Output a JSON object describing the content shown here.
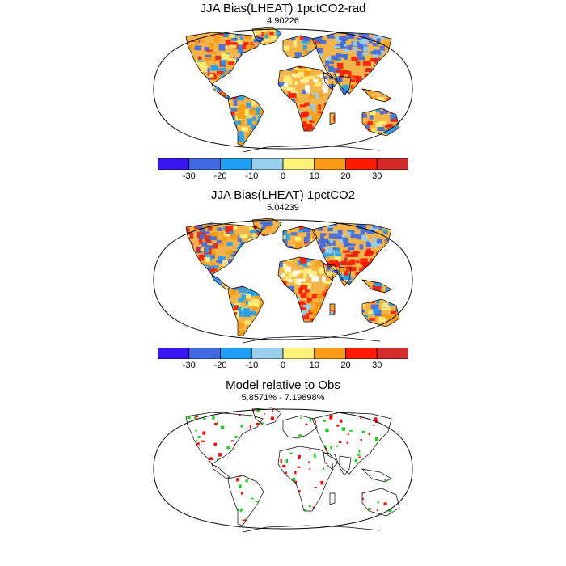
{
  "panels": [
    {
      "title": "JJA Bias(LHEAT) 1pctCO2-rad",
      "subtitle": "4.90226"
    },
    {
      "title": "JJA Bias(LHEAT) 1pctCO2",
      "subtitle": "5.04239"
    },
    {
      "title": "Model relative to Obs",
      "subtitle": "5.8571% - 7.19898%"
    }
  ],
  "colorbar": {
    "labels": [
      "-30",
      "-20",
      "-10",
      "0",
      "10",
      "20",
      "30"
    ],
    "colors": [
      "#3a16f2",
      "#4169e1",
      "#1e9ff5",
      "#97cfec",
      "#fff07a",
      "#f99b14",
      "#ff1a00",
      "#d42a2a"
    ]
  },
  "palette": {
    "land_warm": "#f3b449",
    "land_blue": "#4b84e0",
    "land_red": "#e03a1e",
    "rel_red": "#ff0000",
    "rel_green": "#22cc22"
  }
}
